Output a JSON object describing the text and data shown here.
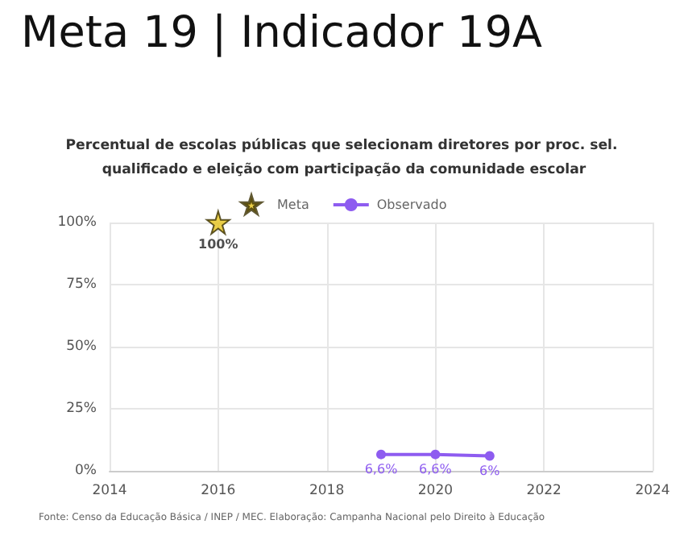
{
  "chart_data": {
    "type": "line",
    "title": "Meta 19 | Indicador 19A",
    "subtitle": "Percentual de escolas públicas que selecionam diretores por proc. sel. qualificado e eleição com participação da comunidade escolar",
    "annotations": [
      "Fonte: Censo da Educação Básica / INEP / MEC. Elaboração: Campanha Nacional pelo Direito à Educação"
    ],
    "series": [
      {
        "name": "Meta",
        "type": "scatter",
        "marker": "star",
        "color": "#e6c31c",
        "x": [
          2016
        ],
        "values": [
          100
        ],
        "value_labels": [
          "100%"
        ]
      },
      {
        "name": "Observado",
        "marker": "circle",
        "color": "#8e5cf0",
        "x": [
          2019,
          2020,
          2021
        ],
        "values": [
          6.6,
          6.6,
          6
        ],
        "value_labels": [
          "6,6%",
          "6,6%",
          "6%"
        ]
      }
    ],
    "xlim": [
      2014,
      2024
    ],
    "xticks": [
      2014,
      2016,
      2018,
      2020,
      2022,
      2024
    ],
    "ylim": [
      0,
      100
    ],
    "yticks": [
      {
        "value": 0,
        "label": "0%"
      },
      {
        "value": 25,
        "label": "25%"
      },
      {
        "value": 50,
        "label": "50%"
      },
      {
        "value": 75,
        "label": "75%"
      },
      {
        "value": 100,
        "label": "100%"
      }
    ],
    "grid": true,
    "legend": "top"
  }
}
